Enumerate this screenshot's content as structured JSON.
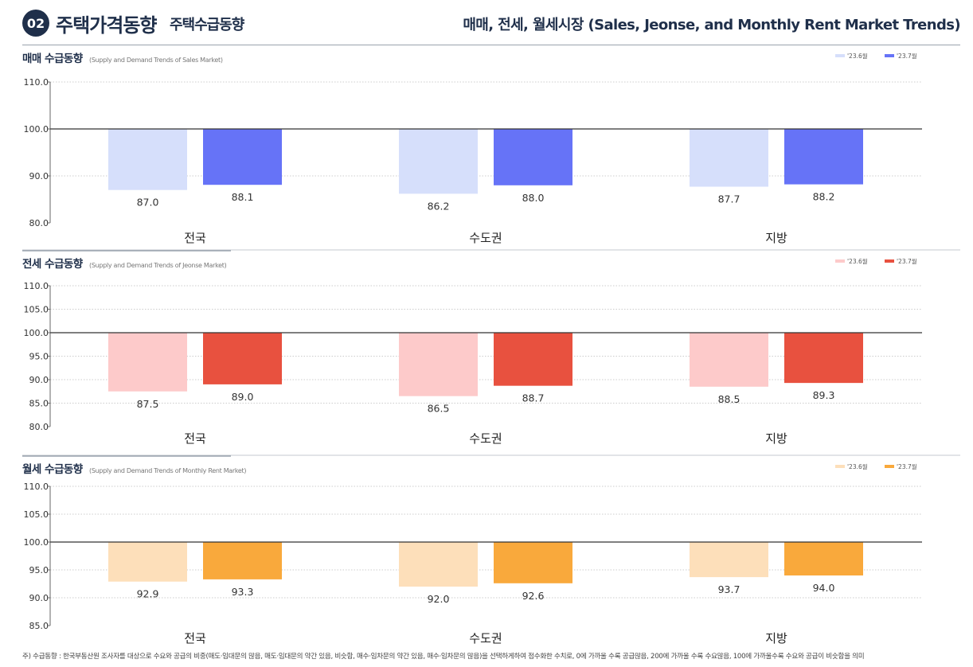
{
  "header": {
    "number": "02",
    "title": "주택가격동향",
    "subtitle": "주택수급동향",
    "right_title": "매매, 전세, 월세시장 (Sales, Jeonse, and Monthly Rent Market Trends)"
  },
  "chart_data": [
    {
      "type": "bar",
      "title": "매매 수급동향",
      "subtitle": "(Supply and Demand Trends of Sales Market)",
      "categories": [
        "전국",
        "수도권",
        "지방"
      ],
      "series": [
        {
          "name": "'23.6월",
          "values": [
            87.0,
            86.2,
            87.7
          ],
          "color": "#d6dffb"
        },
        {
          "name": "'23.7월",
          "values": [
            88.1,
            88.0,
            88.2
          ],
          "color": "#6673f7"
        }
      ],
      "baseline": 100,
      "ylim": [
        80,
        110
      ],
      "yticks": [
        "80.0",
        "90.0",
        "100.0",
        "110.0"
      ],
      "legend": "top-right"
    },
    {
      "type": "bar",
      "title": "전세 수급동향",
      "subtitle": "(Supply and Demand Trends of Jeonse Market)",
      "categories": [
        "전국",
        "수도권",
        "지방"
      ],
      "series": [
        {
          "name": "'23.6월",
          "values": [
            87.5,
            86.5,
            88.5
          ],
          "color": "#fdcaca"
        },
        {
          "name": "'23.7월",
          "values": [
            89.0,
            88.7,
            89.3
          ],
          "color": "#e8513f"
        }
      ],
      "baseline": 100,
      "ylim": [
        80,
        110
      ],
      "yticks": [
        "80.0",
        "85.0",
        "90.0",
        "95.0",
        "100.0",
        "105.0",
        "110.0"
      ],
      "legend": "top-right"
    },
    {
      "type": "bar",
      "title": "월세 수급동향",
      "subtitle": "(Supply and Demand Trends of Monthly Rent Market)",
      "categories": [
        "전국",
        "수도권",
        "지방"
      ],
      "series": [
        {
          "name": "'23.6월",
          "values": [
            92.9,
            92.0,
            93.7
          ],
          "color": "#fddfba"
        },
        {
          "name": "'23.7월",
          "values": [
            93.3,
            92.6,
            94.0
          ],
          "color": "#f9a93c"
        }
      ],
      "baseline": 100,
      "ylim": [
        85,
        110
      ],
      "yticks": [
        "85.0",
        "90.0",
        "95.0",
        "100.0",
        "105.0",
        "110.0"
      ],
      "legend": "top-right"
    }
  ],
  "footnote": "주) 수급동향 : 한국부동산원 조사자를 대상으로 수요와 공급의 비중(매도·임대문의 많음, 매도·임대문의 약간 있음, 비슷함, 매수·임차문의 약간 있음, 매수·임차문의 많음)을 선택하게하여 점수화한 수치로, 0에 가까울 수록 공급많음, 200에 가까울 수록 수요많음, 100에 가까울수록 수요와 공급이 비슷함을 의미"
}
